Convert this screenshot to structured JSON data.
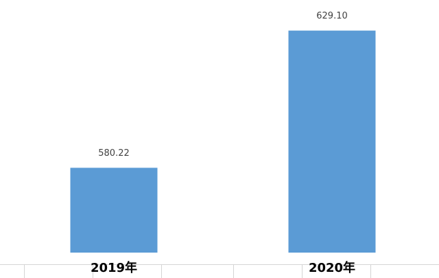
{
  "chart_data": {
    "type": "bar",
    "categories": [
      "2019年",
      "2020年"
    ],
    "values": [
      580.22,
      629.1
    ],
    "value_labels": [
      "580.22",
      "629.10"
    ],
    "color": "#5b9bd5",
    "ylim": [
      550,
      640
    ]
  }
}
